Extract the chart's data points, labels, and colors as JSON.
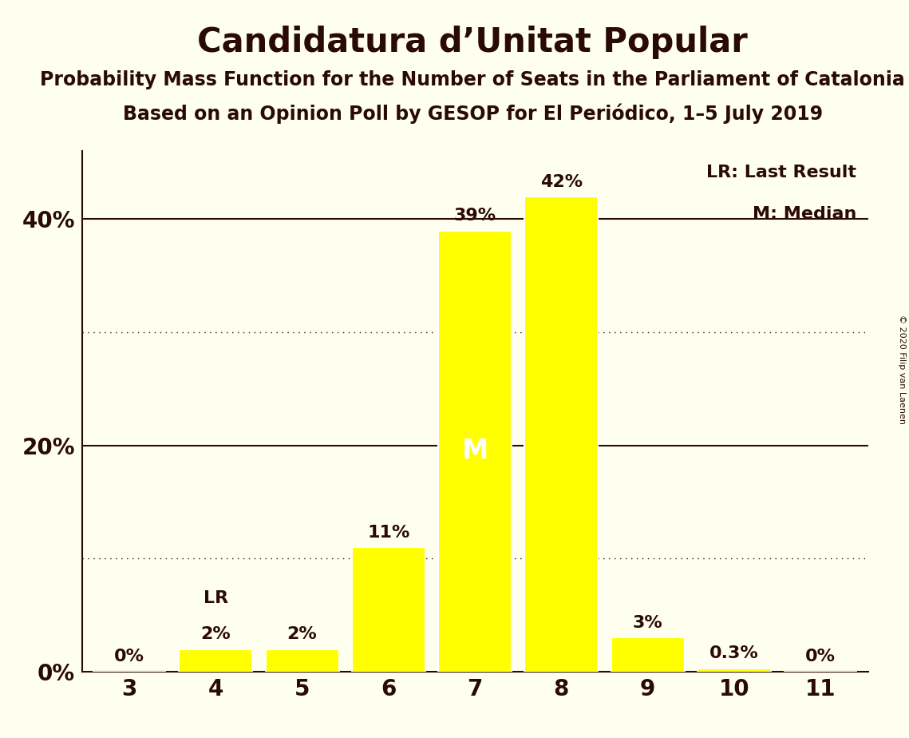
{
  "title": "Candidatura d’Unitat Popular",
  "subtitle1": "Probability Mass Function for the Number of Seats in the Parliament of Catalonia",
  "subtitle2": "Based on an Opinion Poll by GESOP for El Periódico, 1–5 July 2019",
  "copyright": "© 2020 Filip van Laenen",
  "categories": [
    3,
    4,
    5,
    6,
    7,
    8,
    9,
    10,
    11
  ],
  "values": [
    0.0,
    0.02,
    0.02,
    0.11,
    0.39,
    0.42,
    0.03,
    0.003,
    0.0
  ],
  "labels": [
    "0%",
    "2%",
    "2%",
    "11%",
    "39%",
    "42%",
    "3%",
    "0.3%",
    "0%"
  ],
  "bar_color": "#ffff00",
  "bar_edge_color": "#ffffff",
  "background_color": "#fffff0",
  "text_color": "#2a0a05",
  "grid_color": "#2a0a05",
  "ylim": [
    0,
    0.46
  ],
  "yticks": [
    0.0,
    0.2,
    0.4
  ],
  "ytick_labels": [
    "0%",
    "20%",
    "40%"
  ],
  "solid_gridlines": [
    0.2,
    0.4
  ],
  "dotted_gridlines": [
    0.1,
    0.3
  ],
  "lr_bar_index": 1,
  "lr_label": "LR",
  "median_bar_index": 4,
  "median_label": "M",
  "legend_lr": "LR: Last Result",
  "legend_m": "M: Median",
  "title_fontsize": 30,
  "subtitle_fontsize": 17,
  "label_fontsize": 16,
  "tick_fontsize": 20,
  "legend_fontsize": 16,
  "lr_annotation_fontsize": 16,
  "m_annotation_fontsize": 24,
  "copyright_fontsize": 8
}
